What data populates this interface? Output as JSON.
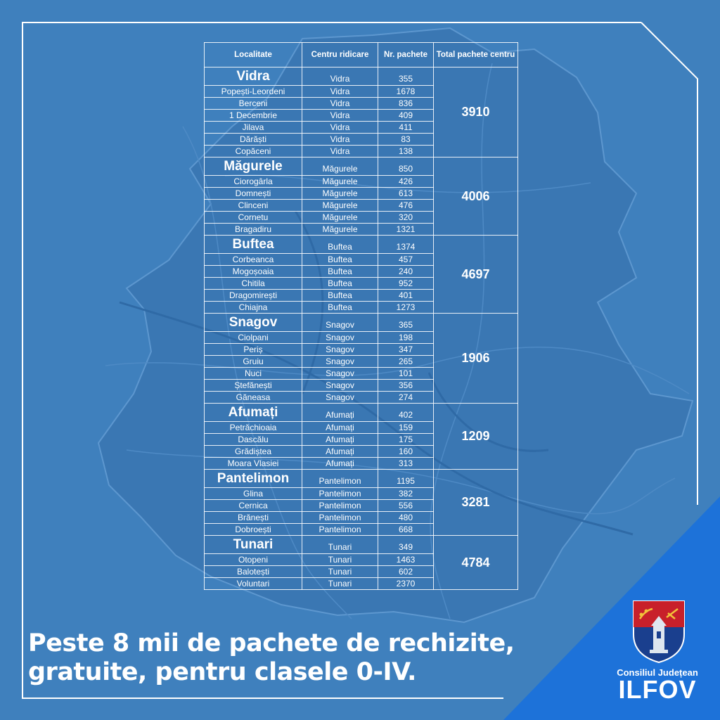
{
  "table": {
    "headers": [
      "Localitate",
      "Centru ridicare",
      "Nr. pachete",
      "Total pachete centru"
    ],
    "groups": [
      {
        "total": "3910",
        "rows": [
          {
            "localitate": "Vidra",
            "centru": "Vidra",
            "pachete": "355"
          },
          {
            "localitate": "Popești-Leordeni",
            "centru": "Vidra",
            "pachete": "1678"
          },
          {
            "localitate": "Berceni",
            "centru": "Vidra",
            "pachete": "836"
          },
          {
            "localitate": "1 Decembrie",
            "centru": "Vidra",
            "pachete": "409"
          },
          {
            "localitate": "Jilava",
            "centru": "Vidra",
            "pachete": "411"
          },
          {
            "localitate": "Dărăști",
            "centru": "Vidra",
            "pachete": "83"
          },
          {
            "localitate": "Copăceni",
            "centru": "Vidra",
            "pachete": "138"
          }
        ]
      },
      {
        "total": "4006",
        "rows": [
          {
            "localitate": "Măgurele",
            "centru": "Măgurele",
            "pachete": "850"
          },
          {
            "localitate": "Ciorogârla",
            "centru": "Măgurele",
            "pachete": "426"
          },
          {
            "localitate": "Domnești",
            "centru": "Măgurele",
            "pachete": "613"
          },
          {
            "localitate": "Clinceni",
            "centru": "Măgurele",
            "pachete": "476"
          },
          {
            "localitate": "Cornetu",
            "centru": "Măgurele",
            "pachete": "320"
          },
          {
            "localitate": "Bragadiru",
            "centru": "Măgurele",
            "pachete": "1321"
          }
        ]
      },
      {
        "total": "4697",
        "rows": [
          {
            "localitate": "Buftea",
            "centru": "Buftea",
            "pachete": "1374"
          },
          {
            "localitate": "Corbeanca",
            "centru": "Buftea",
            "pachete": "457"
          },
          {
            "localitate": "Mogoșoaia",
            "centru": "Buftea",
            "pachete": "240"
          },
          {
            "localitate": "Chitila",
            "centru": "Buftea",
            "pachete": "952"
          },
          {
            "localitate": "Dragomirești",
            "centru": "Buftea",
            "pachete": "401"
          },
          {
            "localitate": "Chiajna",
            "centru": "Buftea",
            "pachete": "1273"
          }
        ]
      },
      {
        "total": "1906",
        "rows": [
          {
            "localitate": "Snagov",
            "centru": "Snagov",
            "pachete": "365"
          },
          {
            "localitate": "Ciolpani",
            "centru": "Snagov",
            "pachete": "198"
          },
          {
            "localitate": "Periș",
            "centru": "Snagov",
            "pachete": "347"
          },
          {
            "localitate": "Gruiu",
            "centru": "Snagov",
            "pachete": "265"
          },
          {
            "localitate": "Nuci",
            "centru": "Snagov",
            "pachete": "101"
          },
          {
            "localitate": "Ștefănești",
            "centru": "Snagov",
            "pachete": "356"
          },
          {
            "localitate": "Găneasa",
            "centru": "Snagov",
            "pachete": "274"
          }
        ]
      },
      {
        "total": "1209",
        "rows": [
          {
            "localitate": "Afumați",
            "centru": "Afumați",
            "pachete": "402"
          },
          {
            "localitate": "Petrăchioaia",
            "centru": "Afumați",
            "pachete": "159"
          },
          {
            "localitate": "Dascălu",
            "centru": "Afumați",
            "pachete": "175"
          },
          {
            "localitate": "Grădiștea",
            "centru": "Afumați",
            "pachete": "160"
          },
          {
            "localitate": "Moara Vlasiei",
            "centru": "Afumați",
            "pachete": "313"
          }
        ]
      },
      {
        "total": "3281",
        "rows": [
          {
            "localitate": "Pantelimon",
            "centru": "Pantelimon",
            "pachete": "1195"
          },
          {
            "localitate": "Glina",
            "centru": "Pantelimon",
            "pachete": "382"
          },
          {
            "localitate": "Cernica",
            "centru": "Pantelimon",
            "pachete": "556"
          },
          {
            "localitate": "Brănești",
            "centru": "Pantelimon",
            "pachete": "480"
          },
          {
            "localitate": "Dobroești",
            "centru": "Pantelimon",
            "pachete": "668"
          }
        ]
      },
      {
        "total": "4784",
        "rows": [
          {
            "localitate": "Tunari",
            "centru": "Tunari",
            "pachete": "349"
          },
          {
            "localitate": "Otopeni",
            "centru": "Tunari",
            "pachete": "1463"
          },
          {
            "localitate": "Balotești",
            "centru": "Tunari",
            "pachete": "602"
          },
          {
            "localitate": "Voluntari",
            "centru": "Tunari",
            "pachete": "2370"
          }
        ]
      }
    ]
  },
  "headline": {
    "line1": "Peste 8 mii de pachete de rechizite,",
    "line2": "gratuite, pentru clasele 0-IV."
  },
  "organization": {
    "name_small": "Consiliul Județean",
    "name_big": "ILFOV"
  },
  "colors": {
    "background": "#3f80bd",
    "corner_triangle": "#1d72d9",
    "text": "#ffffff",
    "crest_red": "#c8202a",
    "crest_blue": "#1a3f8e"
  }
}
